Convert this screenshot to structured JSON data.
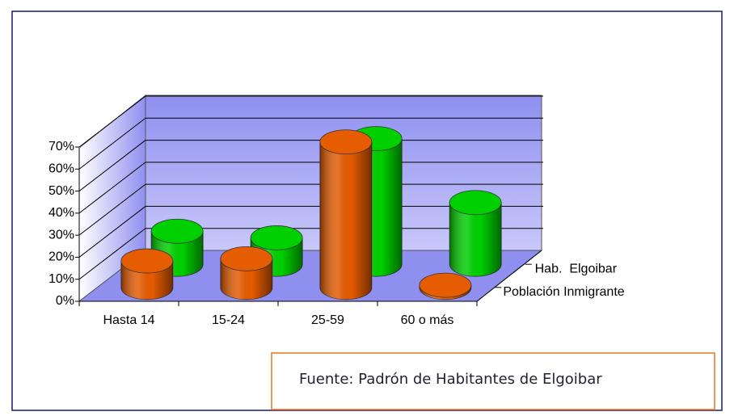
{
  "chart_data": {
    "type": "bar",
    "categories": [
      "Hasta 14",
      "15-24",
      "25-59",
      "60 o más"
    ],
    "series": [
      {
        "name": "Población Inmigrante",
        "color": "#e65c00",
        "values": [
          12,
          13,
          66,
          1
        ]
      },
      {
        "name": "Hab.  Elgoibar",
        "color": "#00d000",
        "values": [
          15,
          12,
          57,
          28
        ]
      }
    ],
    "ylim": [
      0,
      70
    ],
    "yticks": [
      {
        "value": 0,
        "label": "0%"
      },
      {
        "value": 10,
        "label": "10%"
      },
      {
        "value": 20,
        "label": "20%"
      },
      {
        "value": 30,
        "label": "30%"
      },
      {
        "value": 40,
        "label": "40%"
      },
      {
        "value": 50,
        "label": "50%"
      },
      {
        "value": 60,
        "label": "60%"
      },
      {
        "value": 70,
        "label": "70%"
      }
    ],
    "grid": true,
    "annotation": "Fuente: Padrón de Habitantes de Elgoibar"
  }
}
